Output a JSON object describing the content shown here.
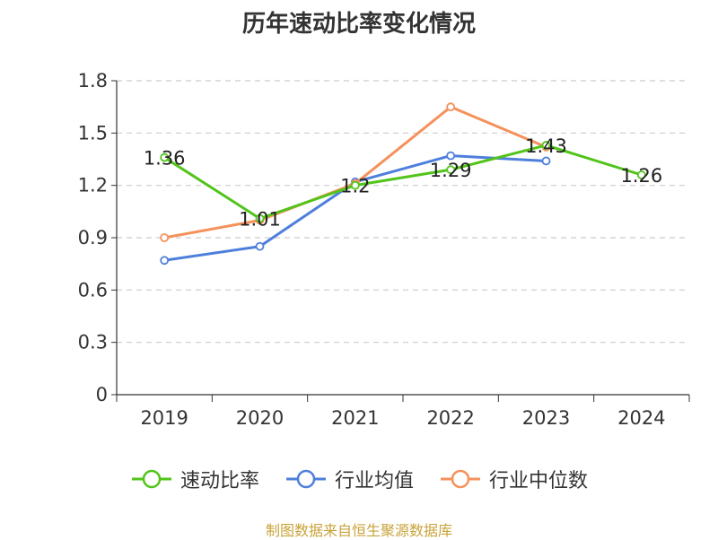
{
  "chart_data": {
    "type": "line",
    "title": "历年速动比率变化情况",
    "categories": [
      "2019",
      "2020",
      "2021",
      "2022",
      "2023",
      "2024"
    ],
    "ylim": [
      0,
      1.8
    ],
    "yticks": [
      0,
      0.3,
      0.6,
      0.9,
      1.2,
      1.5,
      1.8
    ],
    "ytick_labels": [
      "0",
      "0.3",
      "0.6",
      "0.9",
      "1.2",
      "1.5",
      "1.8"
    ],
    "grid": true,
    "legend_position": "bottom",
    "series": [
      {
        "name": "速动比率",
        "color": "#52c41a",
        "values": [
          1.36,
          1.01,
          1.2,
          1.29,
          1.43,
          1.26
        ],
        "labels": [
          "1.36",
          "1.01",
          "1.2",
          "1.29",
          "1.43",
          "1.26"
        ]
      },
      {
        "name": "行业均值",
        "color": "#4e7fdc",
        "values": [
          0.77,
          0.85,
          1.22,
          1.37,
          1.34,
          null
        ]
      },
      {
        "name": "行业中位数",
        "color": "#f5915a",
        "values": [
          0.9,
          1.0,
          1.21,
          1.65,
          1.42,
          null
        ]
      }
    ]
  },
  "footer": {
    "source": "制图数据来自恒生聚源数据库"
  }
}
